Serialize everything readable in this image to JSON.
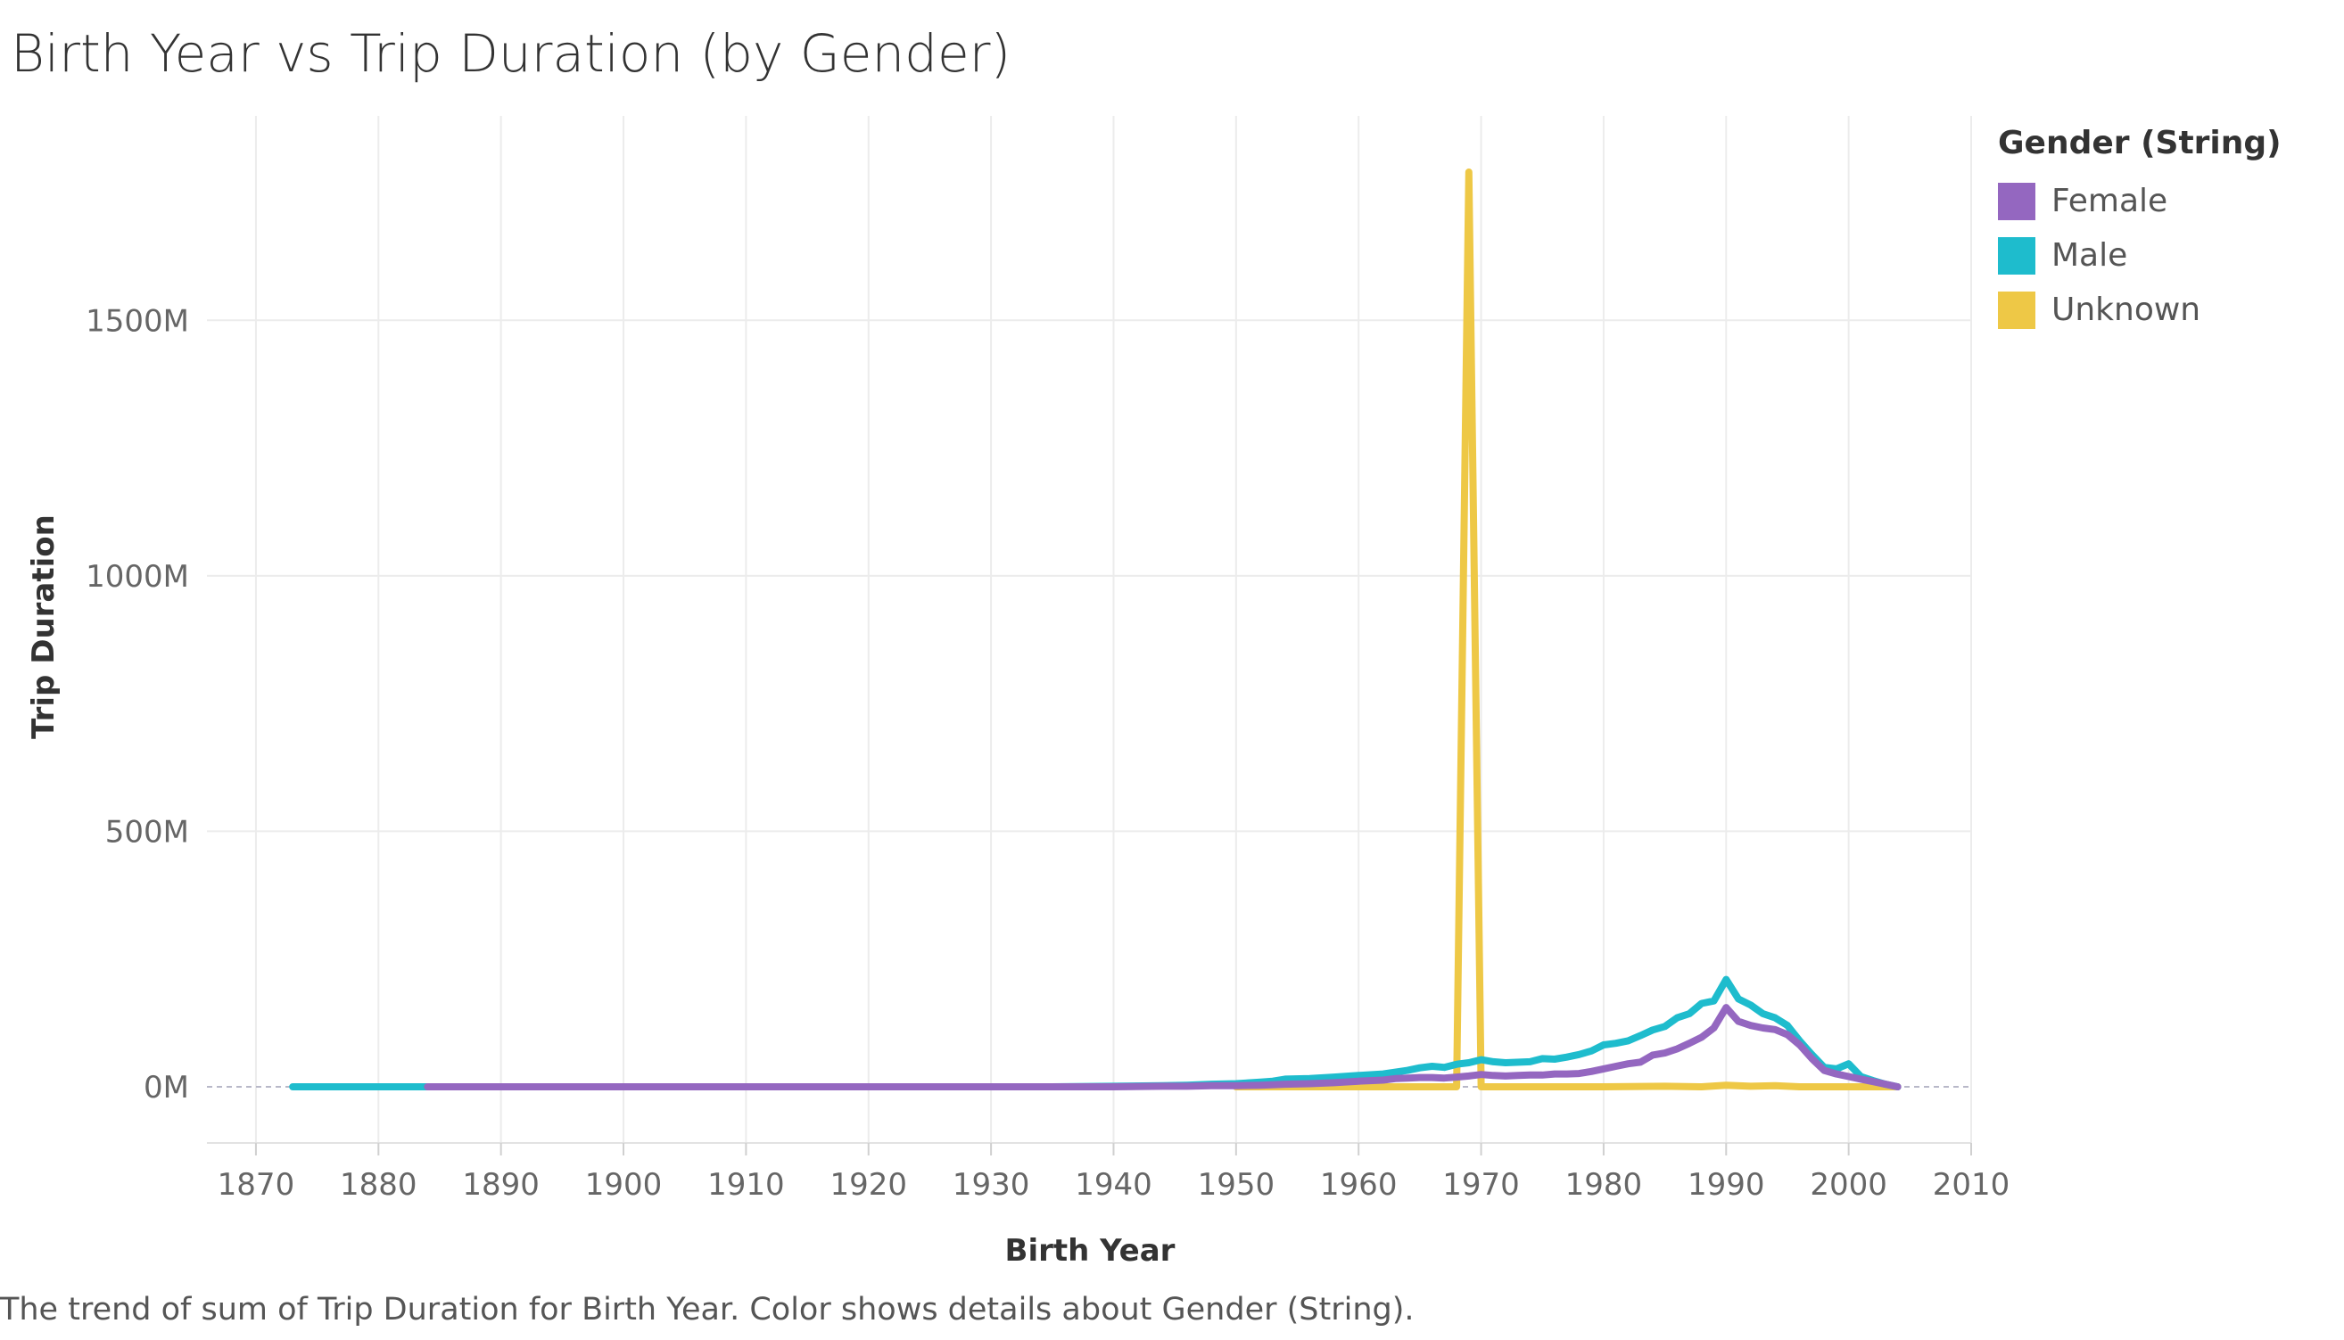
{
  "chart_data": {
    "type": "line",
    "title": "Birth Year vs Trip Duration (by Gender)",
    "xlabel": "Birth Year",
    "ylabel": "Trip Duration",
    "xlim": [
      1866,
      2010
    ],
    "ylim": [
      -110,
      1900
    ],
    "x_ticks": [
      1870,
      1880,
      1890,
      1900,
      1910,
      1920,
      1930,
      1940,
      1950,
      1960,
      1970,
      1980,
      1990,
      2000,
      2010
    ],
    "x_tick_labels": [
      "1870",
      "1880",
      "1890",
      "1900",
      "1910",
      "1920",
      "1930",
      "1940",
      "1950",
      "1960",
      "1970",
      "1980",
      "1990",
      "2000",
      "2010"
    ],
    "y_ticks": [
      0,
      500,
      1000,
      1500
    ],
    "y_tick_labels": [
      "0M",
      "500M",
      "1000M",
      "1500M"
    ],
    "grid": true,
    "legend": {
      "title": "Gender (String)",
      "position": "right"
    },
    "series": [
      {
        "name": "Male",
        "color": "#1ebccd",
        "points": [
          [
            1873,
            0
          ],
          [
            1875,
            0
          ],
          [
            1880,
            0
          ],
          [
            1884,
            0
          ],
          [
            1890,
            0
          ],
          [
            1900,
            0
          ],
          [
            1910,
            0
          ],
          [
            1920,
            0
          ],
          [
            1930,
            0
          ],
          [
            1935,
            0
          ],
          [
            1940,
            1
          ],
          [
            1944,
            2
          ],
          [
            1946,
            3
          ],
          [
            1948,
            5
          ],
          [
            1950,
            6
          ],
          [
            1952,
            9
          ],
          [
            1953,
            11
          ],
          [
            1954,
            15
          ],
          [
            1956,
            16
          ],
          [
            1958,
            19
          ],
          [
            1960,
            22
          ],
          [
            1962,
            25
          ],
          [
            1964,
            32
          ],
          [
            1965,
            37
          ],
          [
            1966,
            40
          ],
          [
            1967,
            38
          ],
          [
            1968,
            44
          ],
          [
            1969,
            47
          ],
          [
            1970,
            53
          ],
          [
            1971,
            49
          ],
          [
            1972,
            47
          ],
          [
            1974,
            49
          ],
          [
            1975,
            55
          ],
          [
            1976,
            54
          ],
          [
            1977,
            58
          ],
          [
            1978,
            63
          ],
          [
            1979,
            70
          ],
          [
            1980,
            82
          ],
          [
            1981,
            85
          ],
          [
            1982,
            90
          ],
          [
            1983,
            100
          ],
          [
            1984,
            111
          ],
          [
            1985,
            118
          ],
          [
            1986,
            135
          ],
          [
            1987,
            143
          ],
          [
            1988,
            163
          ],
          [
            1989,
            168
          ],
          [
            1990,
            210
          ],
          [
            1991,
            172
          ],
          [
            1992,
            160
          ],
          [
            1993,
            143
          ],
          [
            1994,
            135
          ],
          [
            1995,
            120
          ],
          [
            1996,
            90
          ],
          [
            1997,
            63
          ],
          [
            1998,
            38
          ],
          [
            1999,
            35
          ],
          [
            2000,
            45
          ],
          [
            2001,
            20
          ],
          [
            2002,
            12
          ],
          [
            2003,
            5
          ],
          [
            2004,
            0
          ]
        ]
      },
      {
        "name": "Female",
        "color": "#9467c0",
        "points": [
          [
            1884,
            0
          ],
          [
            1890,
            0
          ],
          [
            1900,
            0
          ],
          [
            1910,
            0
          ],
          [
            1920,
            0
          ],
          [
            1930,
            0
          ],
          [
            1940,
            0
          ],
          [
            1944,
            1
          ],
          [
            1946,
            1
          ],
          [
            1948,
            2
          ],
          [
            1950,
            2
          ],
          [
            1952,
            3
          ],
          [
            1954,
            5
          ],
          [
            1956,
            6
          ],
          [
            1958,
            8
          ],
          [
            1960,
            11
          ],
          [
            1962,
            13
          ],
          [
            1963,
            16
          ],
          [
            1964,
            17
          ],
          [
            1965,
            18
          ],
          [
            1966,
            18
          ],
          [
            1967,
            17
          ],
          [
            1968,
            19
          ],
          [
            1969,
            21
          ],
          [
            1970,
            24
          ],
          [
            1971,
            22
          ],
          [
            1972,
            21
          ],
          [
            1973,
            22
          ],
          [
            1974,
            23
          ],
          [
            1975,
            23
          ],
          [
            1976,
            25
          ],
          [
            1977,
            25
          ],
          [
            1978,
            26
          ],
          [
            1979,
            30
          ],
          [
            1980,
            35
          ],
          [
            1981,
            40
          ],
          [
            1982,
            45
          ],
          [
            1983,
            48
          ],
          [
            1984,
            62
          ],
          [
            1985,
            66
          ],
          [
            1986,
            74
          ],
          [
            1987,
            85
          ],
          [
            1988,
            97
          ],
          [
            1989,
            115
          ],
          [
            1990,
            155
          ],
          [
            1991,
            128
          ],
          [
            1992,
            120
          ],
          [
            1993,
            115
          ],
          [
            1994,
            112
          ],
          [
            1995,
            102
          ],
          [
            1996,
            82
          ],
          [
            1997,
            55
          ],
          [
            1998,
            32
          ],
          [
            1999,
            25
          ],
          [
            2000,
            20
          ],
          [
            2001,
            15
          ],
          [
            2002,
            10
          ],
          [
            2003,
            5
          ],
          [
            2004,
            0
          ]
        ]
      },
      {
        "name": "Unknown",
        "color": "#eec846",
        "points": [
          [
            1950,
            0
          ],
          [
            1960,
            0
          ],
          [
            1968,
            0
          ],
          [
            1969,
            1790
          ],
          [
            1970,
            0
          ],
          [
            1975,
            0
          ],
          [
            1980,
            0
          ],
          [
            1985,
            1
          ],
          [
            1988,
            0
          ],
          [
            1990,
            3
          ],
          [
            1992,
            1
          ],
          [
            1994,
            2
          ],
          [
            1996,
            0
          ],
          [
            2000,
            0
          ],
          [
            2004,
            0
          ]
        ]
      }
    ],
    "caption": "The trend of sum of Trip Duration for Birth Year.  Color shows details about Gender (String)."
  }
}
